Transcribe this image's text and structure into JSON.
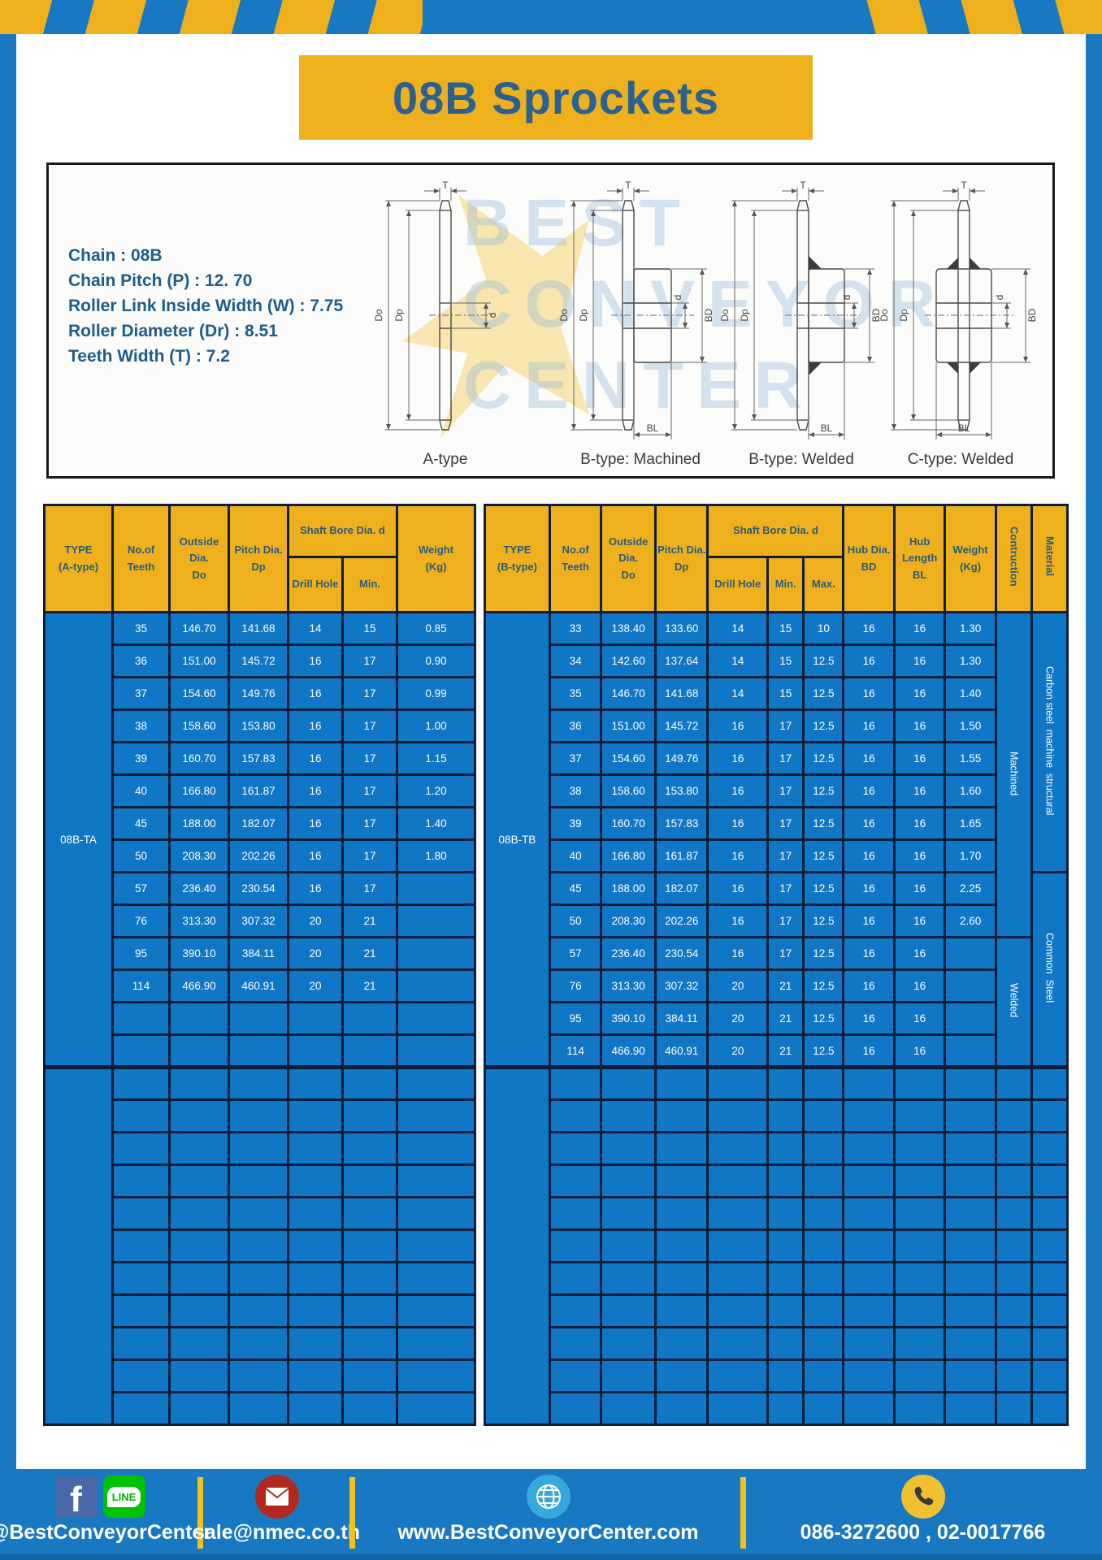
{
  "colors": {
    "frame_blue": "#1878c2",
    "accent_yellow": "#eeb11d",
    "cell_blue": "#1076c6",
    "grid_navy": "#0d1d3a",
    "title_text": "#2a6191"
  },
  "header": {
    "title": "08B Sprockets"
  },
  "specs": {
    "lines": [
      "Chain  : 08B",
      "Chain Pitch (P)  :  12. 70",
      "Roller Link Inside Width (W)  :  7.75",
      "Roller Diameter (Dr)  : 8.51",
      "Teeth Width (T)  :  7.2"
    ]
  },
  "diagram": {
    "captions": [
      "A-type",
      "B-type: Machined",
      "B-type: Welded",
      "C-type: Welded"
    ],
    "dims": {
      "t": "T",
      "do": "Do",
      "dp": "Dp",
      "d": "d",
      "bd": "BD",
      "bl": "BL"
    },
    "watermark": [
      "BEST",
      "CONVEYOR",
      "CENTER"
    ]
  },
  "left_table": {
    "headers": {
      "type": "TYPE\n(A-type)",
      "teeth": "No.of\nTeeth",
      "outside": "Outside\nDia.\nDo",
      "pitch": "Pitch Dia.\nDp",
      "shaft_bore": "Shaft Bore Dia. d",
      "drill": "Drill Hole",
      "min": "Min.",
      "weight": "Weight\n(Kg)"
    },
    "type_label": "08B-TA",
    "rows": [
      [
        "35",
        "146.70",
        "141.68",
        "14",
        "15",
        "0.85"
      ],
      [
        "36",
        "151.00",
        "145.72",
        "16",
        "17",
        "0.90"
      ],
      [
        "37",
        "154.60",
        "149.76",
        "16",
        "17",
        "0.99"
      ],
      [
        "38",
        "158.60",
        "153.80",
        "16",
        "17",
        "1.00"
      ],
      [
        "39",
        "160.70",
        "157.83",
        "16",
        "17",
        "1.15"
      ],
      [
        "40",
        "166.80",
        "161.87",
        "16",
        "17",
        "1.20"
      ],
      [
        "45",
        "188.00",
        "182.07",
        "16",
        "17",
        "1.40"
      ],
      [
        "50",
        "208.30",
        "202.26",
        "16",
        "17",
        "1.80"
      ],
      [
        "57",
        "236.40",
        "230.54",
        "16",
        "17",
        ""
      ],
      [
        "76",
        "313.30",
        "307.32",
        "20",
        "21",
        ""
      ],
      [
        "95",
        "390.10",
        "384.11",
        "20",
        "21",
        ""
      ],
      [
        "114",
        "466.90",
        "460.91",
        "20",
        "21",
        ""
      ],
      [
        "",
        "",
        "",
        "",
        "",
        ""
      ],
      [
        "",
        "",
        "",
        "",
        "",
        ""
      ]
    ],
    "merges": {
      "0": [
        {
          "side": "start",
          "rowspan": 14,
          "text": "08B-TA",
          "cls": "type-cell",
          "name": "type-label-08b-ta"
        }
      ]
    },
    "empty_section": {
      "rows": 11,
      "cols": 6,
      "type_col": true
    }
  },
  "right_table": {
    "headers": {
      "type": "TYPE\n(B-type)",
      "teeth": "No.of\nTeeth",
      "outside": "Outside\nDia.\nDo",
      "pitch": "Pitch Dia.\nDp",
      "shaft_bore": "Shaft Bore Dia. d",
      "drill": "Drill Hole",
      "min": "Min.",
      "max": "Max.",
      "hub_dia": "Hub Dia.\nBD",
      "hub_len": "Hub\nLength\nBL",
      "weight": "Weight\n(Kg)",
      "construction": "Contruction",
      "material": "Material"
    },
    "type_label": "08B-TB",
    "rows": [
      [
        "33",
        "138.40",
        "133.60",
        "14",
        "15",
        "10",
        "16",
        "16",
        "1.30"
      ],
      [
        "34",
        "142.60",
        "137.64",
        "14",
        "15",
        "12.5",
        "16",
        "16",
        "1.30"
      ],
      [
        "35",
        "146.70",
        "141.68",
        "14",
        "15",
        "12.5",
        "16",
        "16",
        "1.40"
      ],
      [
        "36",
        "151.00",
        "145.72",
        "16",
        "17",
        "12.5",
        "16",
        "16",
        "1.50"
      ],
      [
        "37",
        "154.60",
        "149.76",
        "16",
        "17",
        "12.5",
        "16",
        "16",
        "1.55"
      ],
      [
        "38",
        "158.60",
        "153.80",
        "16",
        "17",
        "12.5",
        "16",
        "16",
        "1.60"
      ],
      [
        "39",
        "160.70",
        "157.83",
        "16",
        "17",
        "12.5",
        "16",
        "16",
        "1.65"
      ],
      [
        "40",
        "166.80",
        "161.87",
        "16",
        "17",
        "12.5",
        "16",
        "16",
        "1.70"
      ],
      [
        "45",
        "188.00",
        "182.07",
        "16",
        "17",
        "12.5",
        "16",
        "16",
        "2.25"
      ],
      [
        "50",
        "208.30",
        "202.26",
        "16",
        "17",
        "12.5",
        "16",
        "16",
        "2.60"
      ],
      [
        "57",
        "236.40",
        "230.54",
        "16",
        "17",
        "12.5",
        "16",
        "16",
        ""
      ],
      [
        "76",
        "313.30",
        "307.32",
        "20",
        "21",
        "12.5",
        "16",
        "16",
        ""
      ],
      [
        "95",
        "390.10",
        "384.11",
        "20",
        "21",
        "12.5",
        "16",
        "16",
        ""
      ],
      [
        "114",
        "466.90",
        "460.91",
        "20",
        "21",
        "12.5",
        "16",
        "16",
        ""
      ]
    ],
    "merges": {
      "0": [
        {
          "side": "start",
          "rowspan": 14,
          "text": "08B-TB",
          "cls": "type-cell",
          "name": "type-label-08b-tb"
        },
        {
          "side": "end",
          "rowspan": 10,
          "text": "Machined",
          "cls": "vert-cell",
          "name": "construction-machined"
        },
        {
          "side": "end",
          "rowspan": 8,
          "text": "Carbon steel  machine  structural",
          "cls": "vert-cell",
          "name": "material-carbon-steel"
        }
      ],
      "8": [
        {
          "side": "end",
          "rowspan": 6,
          "text": "Common  Steel",
          "cls": "vert-cell",
          "name": "material-common-steel"
        }
      ],
      "10": [
        {
          "side": "end",
          "rowspan": 4,
          "text": "Welded",
          "cls": "vert-cell",
          "name": "construction-welded"
        }
      ]
    },
    "empty_section": {
      "rows": 11,
      "cols": 11,
      "type_col": true
    }
  },
  "footer": {
    "social_label": "@BestConveyorCenter",
    "line_badge": "LINE",
    "facebook_f": "f",
    "email": "sale@nmec.co.th",
    "website": "www.BestConveyorCenter.com",
    "phone": "086-3272600 , 02-0017766"
  }
}
